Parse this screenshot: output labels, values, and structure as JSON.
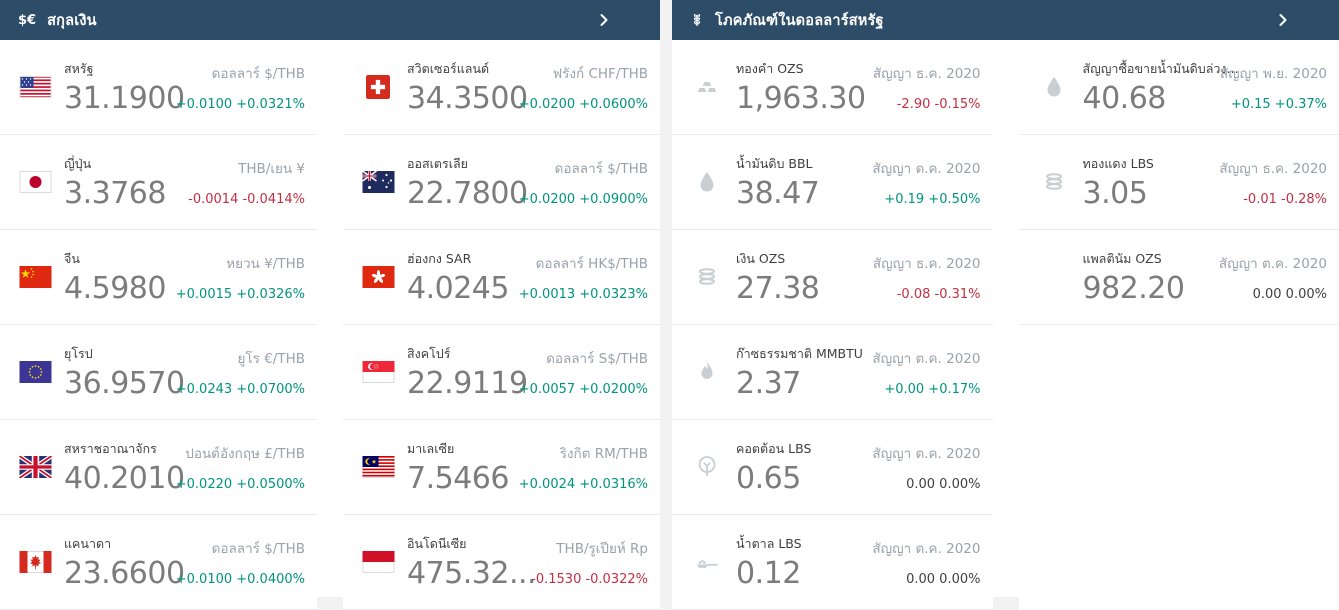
{
  "colors": {
    "header_bg": "#2c4c68",
    "positive": "#00947e",
    "negative": "#c22f43",
    "neutral_change": "#3f3f3f",
    "value_text": "#7c7c7c",
    "name_text": "#3f3f3f",
    "unit_text": "#99a2ab",
    "page_bg": "#f2f2f3",
    "card_border": "#e9eaeb",
    "icon_gray": "#c9ced3"
  },
  "currencies_panel": {
    "title": "สกุลเงิน",
    "header_icon": "dollar-euro-icon",
    "header_icon_text": "$€",
    "items": [
      {
        "country": "สหรัฐ",
        "flag": "us",
        "value": "31.1900",
        "unit": "ดอลลาร์ $/THB",
        "change": "+0.0100 +0.0321%",
        "direction": "up"
      },
      {
        "country": "สวิตเซอร์แลนด์",
        "flag": "ch",
        "value": "34.3500",
        "unit": "ฟรังก์ CHF/THB",
        "change": "+0.0200 +0.0600%",
        "direction": "up"
      },
      {
        "country": "ญี่ปุ่น",
        "flag": "jp",
        "value": "3.3768",
        "unit": "THB/เยน ¥",
        "change": "-0.0014 -0.0414%",
        "direction": "down"
      },
      {
        "country": "ออสเตรเลีย",
        "flag": "au",
        "value": "22.7800",
        "unit": "ดอลลาร์ $/THB",
        "change": "+0.0200 +0.0900%",
        "direction": "up"
      },
      {
        "country": "จีน",
        "flag": "cn",
        "value": "4.5980",
        "unit": "หยวน ¥/THB",
        "change": "+0.0015 +0.0326%",
        "direction": "up"
      },
      {
        "country": "ฮ่องกง SAR",
        "flag": "hk",
        "value": "4.0245",
        "unit": "ดอลลาร์ HK$/THB",
        "change": "+0.0013 +0.0323%",
        "direction": "up"
      },
      {
        "country": "ยุโรป",
        "flag": "eu",
        "value": "36.9570",
        "unit": "ยูโร €/THB",
        "change": "+0.0243 +0.0700%",
        "direction": "up"
      },
      {
        "country": "สิงคโปร์",
        "flag": "sg",
        "value": "22.9119",
        "unit": "ดอลลาร์ S$/THB",
        "change": "+0.0057 +0.0200%",
        "direction": "up"
      },
      {
        "country": "สหราชอาณาจักร",
        "flag": "gb",
        "value": "40.2010",
        "unit": "ปอนด์อังกฤษ £/THB",
        "change": "+0.0220 +0.0500%",
        "direction": "up"
      },
      {
        "country": "มาเลเซีย",
        "flag": "my",
        "value": "7.5466",
        "unit": "ริงกิต RM/THB",
        "change": "+0.0024 +0.0316%",
        "direction": "up"
      },
      {
        "country": "แคนาดา",
        "flag": "ca",
        "value": "23.6600",
        "unit": "ดอลลาร์ $/THB",
        "change": "+0.0100 +0.0400%",
        "direction": "up"
      },
      {
        "country": "อินโดนีเซีย",
        "flag": "id",
        "value": "475.32...",
        "unit": "THB/รูเปียห์ Rp",
        "change": "-0.1530 -0.0322%",
        "direction": "down"
      }
    ]
  },
  "commodities_panel": {
    "title": "โภคภัณฑ์ในดอลลาร์สหรัฐ",
    "header_icon": "wheat-icon",
    "items": [
      {
        "name": "ทองคำ OZS",
        "icon": "gold-bars",
        "value": "1,963.30",
        "contract": "สัญญา ธ.ค. 2020",
        "change": "-2.90 -0.15%",
        "direction": "down"
      },
      {
        "name": "สัญญาซื้อขายน้ำมันดิบล่วง...",
        "icon": "droplet",
        "value": "40.68",
        "contract": "สัญญา พ.ย. 2020",
        "change": "+0.15 +0.37%",
        "direction": "up"
      },
      {
        "name": "น้ำมันดิบ BBL",
        "icon": "droplet",
        "value": "38.47",
        "contract": "สัญญา ต.ค. 2020",
        "change": "+0.19 +0.50%",
        "direction": "up"
      },
      {
        "name": "ทองแดง LBS",
        "icon": "coil",
        "value": "3.05",
        "contract": "สัญญา ธ.ค. 2020",
        "change": "-0.01 -0.28%",
        "direction": "down"
      },
      {
        "name": "เงิน OZS",
        "icon": "coil",
        "value": "27.38",
        "contract": "สัญญา ธ.ค. 2020",
        "change": "-0.08 -0.31%",
        "direction": "down"
      },
      {
        "name": "แพลตินัม OZS",
        "icon": "blank",
        "value": "982.20",
        "contract": "สัญญา ต.ค. 2020",
        "change": "0.00 0.00%",
        "direction": "flat"
      },
      {
        "name": "ก๊าซธรรมชาติ MMBTU",
        "icon": "flame",
        "value": "2.37",
        "contract": "สัญญา ต.ค. 2020",
        "change": "+0.00 +0.17%",
        "direction": "up"
      },
      {
        "empty": true
      },
      {
        "name": "คอตต้อน LBS",
        "icon": "cotton",
        "value": "0.65",
        "contract": "สัญญา ต.ค. 2020",
        "change": "0.00 0.00%",
        "direction": "flat"
      },
      {
        "empty": true
      },
      {
        "name": "น้ำตาล LBS",
        "icon": "sugar",
        "value": "0.12",
        "contract": "สัญญา ต.ค. 2020",
        "change": "0.00 0.00%",
        "direction": "flat"
      },
      {
        "empty": true
      }
    ]
  }
}
